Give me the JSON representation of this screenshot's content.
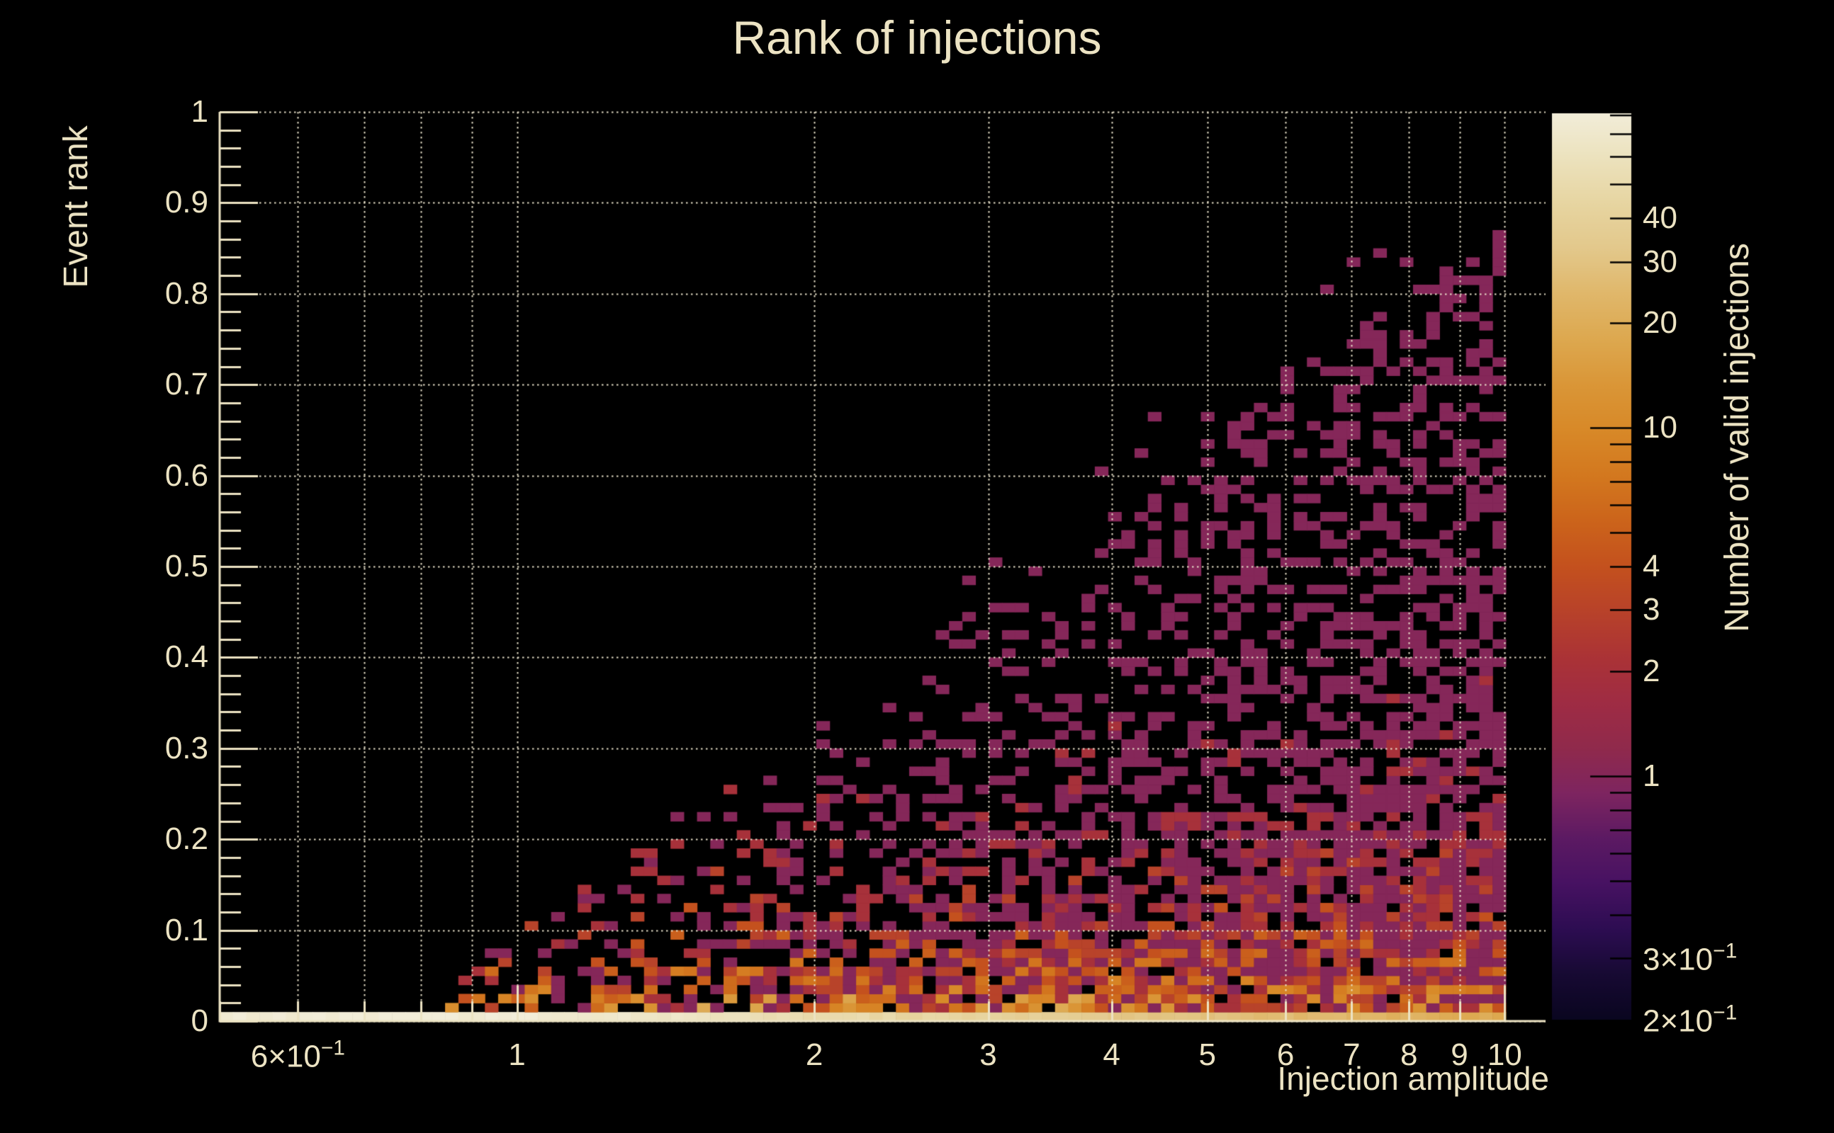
{
  "colors": {
    "background": "#000000",
    "text": "#ece3c3",
    "axis": "#ece3c3",
    "grid": "rgba(236,229,206,0.95)",
    "colorbar_tick": "#000000"
  },
  "title": {
    "text": "Rank of injections"
  },
  "axes": {
    "x": {
      "title": "Injection amplitude",
      "scale": "log",
      "min": 0.5,
      "max": 11,
      "tick_values": [
        0.5,
        0.6,
        0.7,
        0.8,
        0.9,
        1,
        2,
        3,
        4,
        5,
        6,
        7,
        8,
        9,
        10
      ],
      "major_ticks": [
        1,
        10
      ],
      "grid_values": [
        0.6,
        0.7,
        0.8,
        0.9,
        1,
        2,
        3,
        4,
        5,
        6,
        7,
        8,
        9,
        10
      ],
      "labels": [
        {
          "v": 0.6,
          "text": "6×10",
          "sup": "−1"
        },
        {
          "v": 1,
          "text": "1"
        },
        {
          "v": 2,
          "text": "2"
        },
        {
          "v": 3,
          "text": "3"
        },
        {
          "v": 4,
          "text": "4"
        },
        {
          "v": 5,
          "text": "5"
        },
        {
          "v": 6,
          "text": "6"
        },
        {
          "v": 7,
          "text": "7"
        },
        {
          "v": 8,
          "text": "8"
        },
        {
          "v": 9,
          "text": "9"
        },
        {
          "v": 10,
          "text": "10"
        }
      ]
    },
    "y": {
      "title": "Event rank",
      "scale": "linear",
      "min": 0,
      "max": 1,
      "major_step": 0.1,
      "minor_step": 0.02,
      "labels": [
        {
          "v": 0,
          "text": "0"
        },
        {
          "v": 0.1,
          "text": "0.1"
        },
        {
          "v": 0.2,
          "text": "0.2"
        },
        {
          "v": 0.3,
          "text": "0.3"
        },
        {
          "v": 0.4,
          "text": "0.4"
        },
        {
          "v": 0.5,
          "text": "0.5"
        },
        {
          "v": 0.6,
          "text": "0.6"
        },
        {
          "v": 0.7,
          "text": "0.7"
        },
        {
          "v": 0.8,
          "text": "0.8"
        },
        {
          "v": 0.9,
          "text": "0.9"
        },
        {
          "v": 1,
          "text": "1"
        }
      ]
    },
    "z": {
      "title": "Number of valid injections",
      "scale": "log",
      "min": 0.2,
      "max": 80,
      "tick_values": [
        80,
        70,
        60,
        50,
        40,
        30,
        20,
        10,
        9,
        8,
        7,
        6,
        5,
        4,
        3,
        2,
        1,
        0.9,
        0.8,
        0.7,
        0.6,
        0.5,
        0.4,
        0.3
      ],
      "major_ticks": [
        10,
        1
      ],
      "labels": [
        {
          "v": 40,
          "text": "40"
        },
        {
          "v": 30,
          "text": "30"
        },
        {
          "v": 20,
          "text": "20"
        },
        {
          "v": 10,
          "text": "10"
        },
        {
          "v": 4,
          "text": "4"
        },
        {
          "v": 3,
          "text": "3"
        },
        {
          "v": 2,
          "text": "2"
        },
        {
          "v": 1,
          "text": "1"
        },
        {
          "v": 0.3,
          "text": "3×10",
          "sup": "−1"
        },
        {
          "v": 0.2,
          "text": "2×10",
          "sup": "−1"
        }
      ]
    }
  },
  "chart_data": {
    "type": "heatmap",
    "title": "Rank of injections",
    "xlabel": "Injection amplitude",
    "ylabel": "Event rank",
    "zlabel": "Number of valid injections",
    "x_scale": "log",
    "x_range": [
      0.5,
      11
    ],
    "y_range": [
      0,
      1
    ],
    "z_scale": "log",
    "z_range": [
      0.2,
      80
    ],
    "n_bins_x": 100,
    "n_bins_y": 100,
    "data_x_max": 10,
    "grid": "dotted, at every decade subdivision in x and every 0.1 in y",
    "legend_position": "right-colorbar",
    "palette_stops": [
      [
        0.0,
        "#0a0620"
      ],
      [
        0.05,
        "#170a33"
      ],
      [
        0.1,
        "#2d0d52"
      ],
      [
        0.15,
        "#471262"
      ],
      [
        0.2,
        "#5c1a63"
      ],
      [
        0.25,
        "#7e2560"
      ],
      [
        0.3,
        "#902a4c"
      ],
      [
        0.35,
        "#9f2c44"
      ],
      [
        0.4,
        "#ab3336"
      ],
      [
        0.45,
        "#b8422a"
      ],
      [
        0.5,
        "#c4511e"
      ],
      [
        0.55,
        "#cc641b"
      ],
      [
        0.6,
        "#d3781f"
      ],
      [
        0.65,
        "#d88928"
      ],
      [
        0.7,
        "#da9637"
      ],
      [
        0.75,
        "#dda84f"
      ],
      [
        0.8,
        "#e0b76a"
      ],
      [
        0.85,
        "#e3c88b"
      ],
      [
        0.9,
        "#e7d5a1"
      ],
      [
        0.95,
        "#ece2bd"
      ],
      [
        1.0,
        "#f2edd9"
      ]
    ],
    "pattern_summary": {
      "description": "2D histogram of event rank vs injection amplitude (log x). The lowest rank bin forms a continuous high-count band across all amplitudes, cream (~78 counts) at amplitude 0.5-1.5 fading to orange (~19 counts) at amplitude 10. Above it, cells of mostly 1-4 counts (wine/red, occasional orange 4-15) fill a wedge whose upper rank envelope rises with amplitude; density is highest near rank 0 and near the lower-right, black holes throughout.",
      "envelope_points": [
        [
          0.85,
          0.02
        ],
        [
          1,
          0.105
        ],
        [
          1.5,
          0.19
        ],
        [
          2,
          0.33
        ],
        [
          3,
          0.47
        ],
        [
          4,
          0.57
        ],
        [
          5,
          0.645
        ],
        [
          7,
          0.765
        ],
        [
          10,
          0.875
        ]
      ],
      "bottom_row_counts": [
        [
          0.5,
          78
        ],
        [
          1,
          76
        ],
        [
          2,
          52
        ],
        [
          3,
          40
        ],
        [
          5,
          29
        ],
        [
          8,
          22
        ],
        [
          10,
          19
        ]
      ]
    },
    "generator": {
      "seed": 1337,
      "bottom_row": {
        "base": 78,
        "la_slope": 1.45,
        "jitter": 0.16
      },
      "envelope": {
        "zero_below": 0.82,
        "at_1": 0.105,
        "coef": 0.78,
        "pow": 1.05,
        "max": 0.875
      },
      "fill_prob": {
        "bottom_amp": 0.9,
        "bottom_rate": 7,
        "wedge_base": 0.16,
        "wedge_gain": 0.62,
        "wedge_rate": 0.8,
        "outlier": 0.035,
        "outlier_rel": 1.12,
        "cap": 0.93
      },
      "counts": {
        "l1": 14,
        "r1": 22,
        "l2": 3.5,
        "r2": 6,
        "l3": 1.3,
        "r3": 1.5,
        "shape": 2.2,
        "max": 34,
        "mid_boost": 1.6
      },
      "left_tail": {
        "min_amp": 0.55,
        "max_rank": 0.055,
        "prob_coef": 0.34
      }
    }
  }
}
